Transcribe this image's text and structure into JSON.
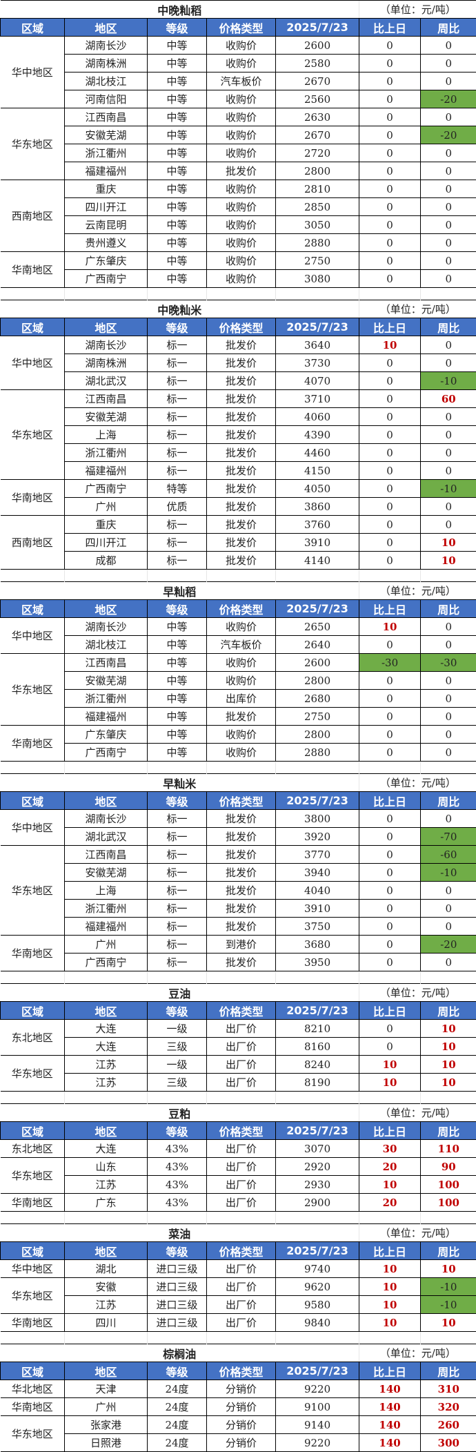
{
  "unit": "（单位：元/吨）",
  "headers": [
    "区域",
    "地区",
    "等级",
    "价格类型",
    "2025/7/23",
    "比上日",
    "周比"
  ],
  "colors": {
    "header_bg": "#4472C4",
    "up_text": "#C00000",
    "down_bg": "#70AD47"
  },
  "sections": [
    {
      "title": "中晚籼稻",
      "groups": [
        {
          "region": "华中地区",
          "rows": [
            [
              "湖南长沙",
              "中等",
              "收购价",
              "2600",
              "0",
              "0"
            ],
            [
              "湖南株洲",
              "中等",
              "收购价",
              "2580",
              "0",
              "0"
            ],
            [
              "湖北枝江",
              "中等",
              "汽车板价",
              "2670",
              "0",
              "0"
            ],
            [
              "河南信阳",
              "中等",
              "收购价",
              "2560",
              "0",
              "-20"
            ]
          ]
        },
        {
          "region": "华东地区",
          "rows": [
            [
              "江西南昌",
              "中等",
              "收购价",
              "2630",
              "0",
              "0"
            ],
            [
              "安徽芜湖",
              "中等",
              "收购价",
              "2670",
              "0",
              "-20"
            ],
            [
              "浙江衢州",
              "中等",
              "收购价",
              "2720",
              "0",
              "0"
            ],
            [
              "福建福州",
              "中等",
              "批发价",
              "2800",
              "0",
              "0"
            ]
          ]
        },
        {
          "region": "西南地区",
          "rows": [
            [
              "重庆",
              "中等",
              "收购价",
              "2810",
              "0",
              "0"
            ],
            [
              "四川开江",
              "中等",
              "收购价",
              "2850",
              "0",
              "0"
            ],
            [
              "云南昆明",
              "中等",
              "收购价",
              "3050",
              "0",
              "0"
            ],
            [
              "贵州遵义",
              "中等",
              "收购价",
              "2880",
              "0",
              "0"
            ]
          ]
        },
        {
          "region": "华南地区",
          "rows": [
            [
              "广东肇庆",
              "中等",
              "收购价",
              "2750",
              "0",
              "0"
            ],
            [
              "广西南宁",
              "中等",
              "收购价",
              "3080",
              "0",
              "0"
            ]
          ]
        }
      ]
    },
    {
      "title": "中晚籼米",
      "groups": [
        {
          "region": "华中地区",
          "rows": [
            [
              "湖南长沙",
              "标一",
              "批发价",
              "3640",
              "10",
              "0"
            ],
            [
              "湖南株洲",
              "标一",
              "批发价",
              "3730",
              "0",
              "0"
            ],
            [
              "湖北武汉",
              "标一",
              "批发价",
              "4070",
              "0",
              "-10"
            ]
          ]
        },
        {
          "region": "华东地区",
          "rows": [
            [
              "江西南昌",
              "标一",
              "批发价",
              "3710",
              "0",
              "60"
            ],
            [
              "安徽芜湖",
              "标一",
              "批发价",
              "4060",
              "0",
              "0"
            ],
            [
              "上海",
              "标一",
              "批发价",
              "4390",
              "0",
              "0"
            ],
            [
              "浙江衢州",
              "标一",
              "批发价",
              "4460",
              "0",
              "0"
            ],
            [
              "福建福州",
              "标一",
              "批发价",
              "4150",
              "0",
              "0"
            ]
          ]
        },
        {
          "region": "华南地区",
          "rows": [
            [
              "广西南宁",
              "特等",
              "批发价",
              "4050",
              "0",
              "-10"
            ],
            [
              "广州",
              "优质",
              "批发价",
              "3860",
              "0",
              "0"
            ]
          ]
        },
        {
          "region": "西南地区",
          "rows": [
            [
              "重庆",
              "标一",
              "批发价",
              "3760",
              "0",
              "0"
            ],
            [
              "四川开江",
              "标一",
              "批发价",
              "3910",
              "0",
              "10"
            ],
            [
              "成都",
              "标一",
              "批发价",
              "4140",
              "0",
              "10"
            ]
          ]
        }
      ]
    },
    {
      "title": "早籼稻",
      "groups": [
        {
          "region": "华中地区",
          "rows": [
            [
              "湖南长沙",
              "中等",
              "收购价",
              "2650",
              "10",
              "0"
            ],
            [
              "湖北枝江",
              "中等",
              "汽车板价",
              "2640",
              "0",
              "0"
            ]
          ]
        },
        {
          "region": "华东地区",
          "rows": [
            [
              "江西南昌",
              "中等",
              "收购价",
              "2600",
              "-30",
              "-30"
            ],
            [
              "安徽芜湖",
              "中等",
              "收购价",
              "2800",
              "0",
              "0"
            ],
            [
              "浙江衢州",
              "中等",
              "出库价",
              "2680",
              "0",
              "0"
            ],
            [
              "福建福州",
              "中等",
              "批发价",
              "2750",
              "0",
              "0"
            ]
          ]
        },
        {
          "region": "华南地区",
          "rows": [
            [
              "广东肇庆",
              "中等",
              "收购价",
              "2800",
              "0",
              "0"
            ],
            [
              "广西南宁",
              "中等",
              "收购价",
              "2880",
              "0",
              "0"
            ]
          ]
        }
      ]
    },
    {
      "title": "早籼米",
      "groups": [
        {
          "region": "华中地区",
          "rows": [
            [
              "湖南长沙",
              "标一",
              "批发价",
              "3800",
              "0",
              "0"
            ],
            [
              "湖北武汉",
              "标一",
              "批发价",
              "3920",
              "0",
              "-70"
            ]
          ]
        },
        {
          "region": "华东地区",
          "rows": [
            [
              "江西南昌",
              "标一",
              "批发价",
              "3770",
              "0",
              "-60"
            ],
            [
              "安徽芜湖",
              "标一",
              "批发价",
              "3940",
              "0",
              "-10"
            ],
            [
              "上海",
              "标一",
              "批发价",
              "4040",
              "0",
              "0"
            ],
            [
              "浙江衢州",
              "标一",
              "批发价",
              "3910",
              "0",
              "0"
            ],
            [
              "福建福州",
              "标一",
              "批发价",
              "3750",
              "0",
              "0"
            ]
          ]
        },
        {
          "region": "华南地区",
          "rows": [
            [
              "广州",
              "标一",
              "到港价",
              "3680",
              "0",
              "-20"
            ],
            [
              "广西南宁",
              "标一",
              "批发价",
              "3950",
              "0",
              "0"
            ]
          ]
        }
      ]
    },
    {
      "title": "豆油",
      "groups": [
        {
          "region": "东北地区",
          "rows": [
            [
              "大连",
              "一级",
              "出厂价",
              "8210",
              "0",
              "10"
            ],
            [
              "大连",
              "三级",
              "出厂价",
              "8160",
              "0",
              "10"
            ]
          ]
        },
        {
          "region": "华东地区",
          "rows": [
            [
              "江苏",
              "一级",
              "出厂价",
              "8240",
              "10",
              "10"
            ],
            [
              "江苏",
              "三级",
              "出厂价",
              "8190",
              "10",
              "10"
            ]
          ]
        }
      ]
    },
    {
      "title": "豆粕",
      "groups": [
        {
          "region": "东北地区",
          "rows": [
            [
              "大连",
              "43%",
              "出厂价",
              "3070",
              "30",
              "110"
            ]
          ]
        },
        {
          "region": "华东地区",
          "rows": [
            [
              "山东",
              "43%",
              "出厂价",
              "2920",
              "20",
              "90"
            ],
            [
              "江苏",
              "43%",
              "出厂价",
              "2930",
              "10",
              "100"
            ]
          ]
        },
        {
          "region": "华南地区",
          "rows": [
            [
              "广东",
              "43%",
              "出厂价",
              "2900",
              "20",
              "100"
            ]
          ]
        }
      ]
    },
    {
      "title": "菜油",
      "groups": [
        {
          "region": "华中地区",
          "rows": [
            [
              "湖北",
              "进口三级",
              "出厂价",
              "9740",
              "10",
              "10"
            ]
          ]
        },
        {
          "region": "华东地区",
          "rows": [
            [
              "安徽",
              "进口三级",
              "出厂价",
              "9620",
              "10",
              "-10"
            ],
            [
              "江苏",
              "进口三级",
              "出厂价",
              "9580",
              "10",
              "-10"
            ]
          ]
        },
        {
          "region": "华南地区",
          "rows": [
            [
              "四川",
              "进口三级",
              "出厂价",
              "9840",
              "10",
              "10"
            ]
          ]
        }
      ]
    },
    {
      "title": "棕榈油",
      "groups": [
        {
          "region": "华北地区",
          "rows": [
            [
              "天津",
              "24度",
              "分销价",
              "9220",
              "140",
              "310"
            ]
          ]
        },
        {
          "region": "华南地区",
          "rows": [
            [
              "广州",
              "24度",
              "分销价",
              "9100",
              "140",
              "320"
            ]
          ]
        },
        {
          "region": "华东地区",
          "rows": [
            [
              "张家港",
              "24度",
              "分销价",
              "9140",
              "140",
              "260"
            ],
            [
              "日照港",
              "24度",
              "分销价",
              "9220",
              "140",
              "300"
            ]
          ]
        }
      ]
    }
  ]
}
